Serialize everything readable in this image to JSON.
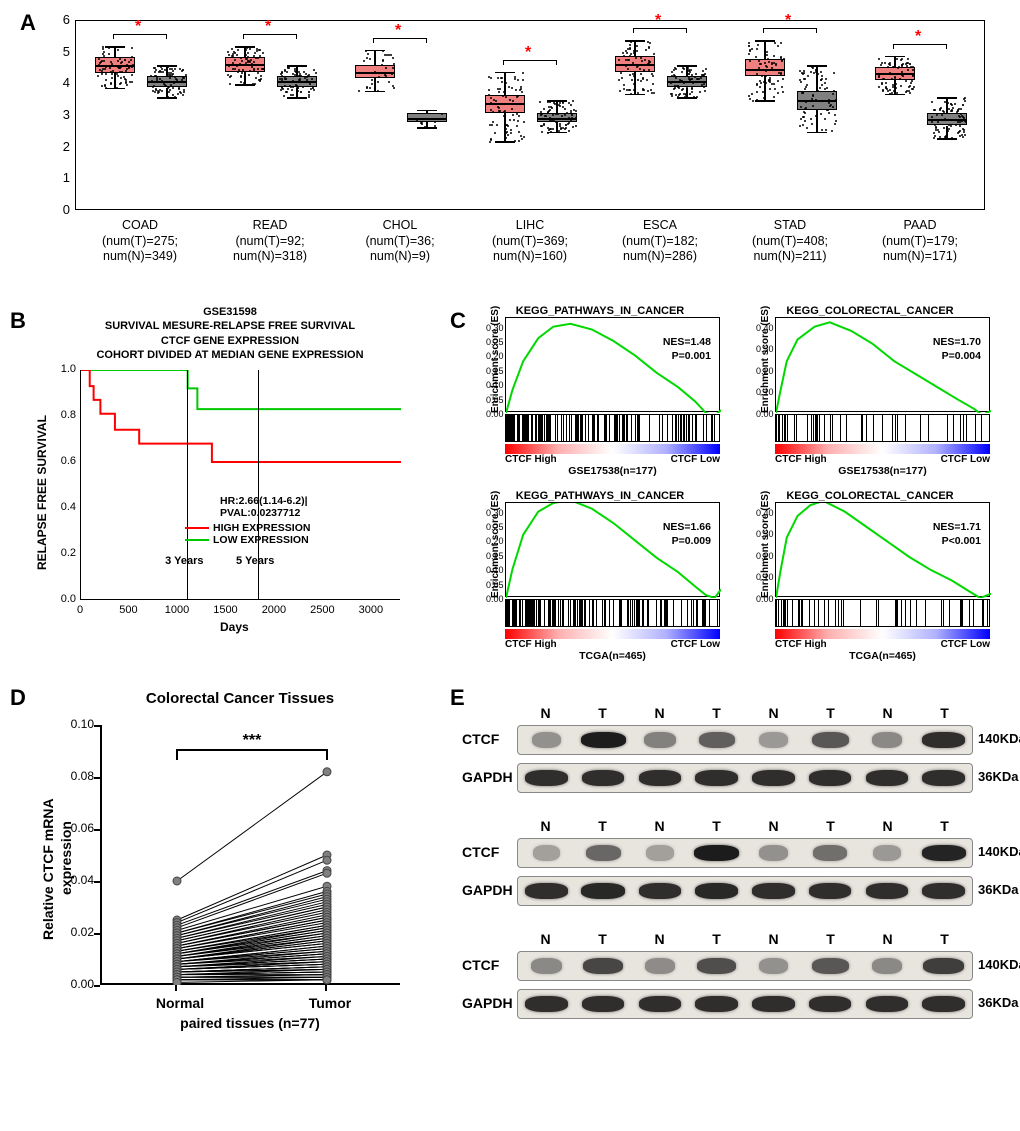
{
  "panelA": {
    "label": "A",
    "y_ticks": [
      0,
      1,
      2,
      3,
      4,
      5,
      6
    ],
    "ymax": 6,
    "colors": {
      "tumor": "#f08080",
      "normal": "#808080"
    },
    "sig_marker": "*",
    "groups": [
      {
        "name": "COAD",
        "T_n": 275,
        "N_n": 349,
        "T": {
          "q1": 4.35,
          "med": 4.6,
          "q3": 4.85,
          "lo": 3.9,
          "hi": 5.2
        },
        "N": {
          "q1": 3.9,
          "med": 4.1,
          "q3": 4.25,
          "lo": 3.6,
          "hi": 4.6
        }
      },
      {
        "name": "READ",
        "T_n": 92,
        "N_n": 318,
        "T": {
          "q1": 4.4,
          "med": 4.65,
          "q3": 4.85,
          "lo": 4.0,
          "hi": 5.2
        },
        "N": {
          "q1": 3.9,
          "med": 4.1,
          "q3": 4.25,
          "lo": 3.6,
          "hi": 4.6
        }
      },
      {
        "name": "CHOL",
        "T_n": 36,
        "N_n": 9,
        "T": {
          "q1": 4.2,
          "med": 4.4,
          "q3": 4.6,
          "lo": 3.8,
          "hi": 5.1
        },
        "N": {
          "q1": 2.8,
          "med": 2.95,
          "q3": 3.1,
          "lo": 2.65,
          "hi": 3.2
        }
      },
      {
        "name": "LIHC",
        "T_n": 369,
        "N_n": 160,
        "T": {
          "q1": 3.1,
          "med": 3.4,
          "q3": 3.65,
          "lo": 2.2,
          "hi": 4.4
        },
        "N": {
          "q1": 2.8,
          "med": 2.95,
          "q3": 3.1,
          "lo": 2.5,
          "hi": 3.5
        }
      },
      {
        "name": "ESCA",
        "T_n": 182,
        "N_n": 286,
        "T": {
          "q1": 4.4,
          "med": 4.65,
          "q3": 4.9,
          "lo": 3.7,
          "hi": 5.4
        },
        "N": {
          "q1": 3.9,
          "med": 4.1,
          "q3": 4.25,
          "lo": 3.6,
          "hi": 4.6
        }
      },
      {
        "name": "STAD",
        "T_n": 408,
        "N_n": 211,
        "T": {
          "q1": 4.25,
          "med": 4.5,
          "q3": 4.8,
          "lo": 3.5,
          "hi": 5.4
        },
        "N": {
          "q1": 3.2,
          "med": 3.5,
          "q3": 3.8,
          "lo": 2.5,
          "hi": 4.6
        }
      },
      {
        "name": "PAAD",
        "T_n": 179,
        "N_n": 171,
        "T": {
          "q1": 4.15,
          "med": 4.35,
          "q3": 4.55,
          "lo": 3.7,
          "hi": 4.9
        },
        "N": {
          "q1": 2.7,
          "med": 2.9,
          "q3": 3.1,
          "lo": 2.3,
          "hi": 3.6
        }
      }
    ]
  },
  "panelB": {
    "label": "B",
    "dataset": "GSE31598",
    "title_lines": [
      "SURVIVAL MESURE-RELAPSE FREE SURVIVAL",
      "CTCF GENE EXPRESSION",
      "COHORT DIVIDED AT MEDIAN GENE EXPRESSION"
    ],
    "y_label": "RELAPSE FREE SURVIVAL",
    "x_label": "Days",
    "y_ticks": [
      0.0,
      0.2,
      0.4,
      0.6,
      0.8,
      1.0
    ],
    "x_ticks": [
      0,
      500,
      1000,
      1500,
      2000,
      2500,
      3000
    ],
    "xmax": 3300,
    "vlines": [
      {
        "x": 1095,
        "label": "3 Years"
      },
      {
        "x": 1825,
        "label": "5 Years"
      }
    ],
    "hr_text": "HR:2.66(1.14-6.2)|",
    "pval_text": "PVAL:0.0237712",
    "legend": [
      {
        "label": "HIGH EXPRESSION",
        "color": "#ff0000"
      },
      {
        "label": "LOW EXPRESSION",
        "color": "#00c800"
      }
    ],
    "high_curve": [
      [
        0,
        1.0
      ],
      [
        90,
        1.0
      ],
      [
        90,
        0.93
      ],
      [
        130,
        0.93
      ],
      [
        130,
        0.87
      ],
      [
        200,
        0.87
      ],
      [
        200,
        0.81
      ],
      [
        350,
        0.81
      ],
      [
        350,
        0.74
      ],
      [
        600,
        0.74
      ],
      [
        600,
        0.68
      ],
      [
        1050,
        0.68
      ],
      [
        1050,
        0.68
      ],
      [
        1350,
        0.68
      ],
      [
        1350,
        0.6
      ],
      [
        3300,
        0.6
      ]
    ],
    "low_curve": [
      [
        0,
        1.0
      ],
      [
        1100,
        1.0
      ],
      [
        1100,
        0.92
      ],
      [
        1200,
        0.92
      ],
      [
        1200,
        0.83
      ],
      [
        3300,
        0.83
      ]
    ]
  },
  "panelC": {
    "label": "C",
    "ylabel": "Enrichment score (ES)",
    "xlabels": [
      "CTCF High",
      "CTCF Low"
    ],
    "gradient_colors": [
      "#ff0000",
      "#ffb0b0",
      "#ffffff",
      "#b0b0ff",
      "#0000ff"
    ],
    "plots": [
      {
        "title": "KEGG_PATHWAYS_IN_CANCER",
        "nes": "NES=1.48",
        "p": "P=0.001",
        "cohort": "GSE17538(n=177)",
        "y_ticks": [
          0.0,
          0.05,
          0.1,
          0.15,
          0.2,
          0.25,
          0.3
        ],
        "ymax": 0.3,
        "curve": [
          [
            0,
            0
          ],
          [
            0.03,
            0.08
          ],
          [
            0.08,
            0.18
          ],
          [
            0.15,
            0.26
          ],
          [
            0.22,
            0.3
          ],
          [
            0.3,
            0.31
          ],
          [
            0.4,
            0.29
          ],
          [
            0.5,
            0.25
          ],
          [
            0.6,
            0.2
          ],
          [
            0.7,
            0.14
          ],
          [
            0.8,
            0.09
          ],
          [
            0.88,
            0.04
          ],
          [
            0.93,
            0.0
          ],
          [
            0.97,
            -0.01
          ],
          [
            1.0,
            0.01
          ]
        ]
      },
      {
        "title": "KEGG_COLORECTAL_CANCER",
        "nes": "NES=1.70",
        "p": "P=0.004",
        "cohort": "GSE17538(n=177)",
        "y_ticks": [
          0.0,
          0.1,
          0.2,
          0.3,
          0.4
        ],
        "ymax": 0.4,
        "curve": [
          [
            0,
            0
          ],
          [
            0.02,
            0.1
          ],
          [
            0.05,
            0.24
          ],
          [
            0.1,
            0.34
          ],
          [
            0.18,
            0.4
          ],
          [
            0.25,
            0.42
          ],
          [
            0.35,
            0.38
          ],
          [
            0.45,
            0.32
          ],
          [
            0.55,
            0.24
          ],
          [
            0.65,
            0.18
          ],
          [
            0.75,
            0.12
          ],
          [
            0.85,
            0.06
          ],
          [
            0.92,
            0.02
          ],
          [
            0.96,
            -0.01
          ],
          [
            1.0,
            0.01
          ]
        ]
      },
      {
        "title": "KEGG_PATHWAYS_IN_CANCER",
        "nes": "NES=1.66",
        "p": "P=0.009",
        "cohort": "TCGA(n=465)",
        "y_ticks": [
          0.0,
          0.05,
          0.1,
          0.15,
          0.2,
          0.25,
          0.3
        ],
        "ymax": 0.3,
        "curve": [
          [
            0,
            0
          ],
          [
            0.03,
            0.1
          ],
          [
            0.08,
            0.22
          ],
          [
            0.15,
            0.3
          ],
          [
            0.22,
            0.33
          ],
          [
            0.3,
            0.34
          ],
          [
            0.4,
            0.31
          ],
          [
            0.5,
            0.26
          ],
          [
            0.6,
            0.2
          ],
          [
            0.7,
            0.14
          ],
          [
            0.8,
            0.09
          ],
          [
            0.88,
            0.04
          ],
          [
            0.93,
            0.01
          ],
          [
            0.97,
            0.0
          ],
          [
            1.0,
            0.03
          ]
        ]
      },
      {
        "title": "KEGG_COLORECTAL_CANCER",
        "nes": "NES=1.71",
        "p": "P<0.001",
        "cohort": "TCGA(n=465)",
        "y_ticks": [
          0.0,
          0.1,
          0.2,
          0.3,
          0.4
        ],
        "ymax": 0.4,
        "curve": [
          [
            0,
            0
          ],
          [
            0.02,
            0.12
          ],
          [
            0.05,
            0.28
          ],
          [
            0.1,
            0.38
          ],
          [
            0.16,
            0.43
          ],
          [
            0.22,
            0.45
          ],
          [
            0.32,
            0.4
          ],
          [
            0.42,
            0.33
          ],
          [
            0.52,
            0.26
          ],
          [
            0.62,
            0.19
          ],
          [
            0.72,
            0.13
          ],
          [
            0.82,
            0.08
          ],
          [
            0.9,
            0.03
          ],
          [
            0.95,
            0.0
          ],
          [
            1.0,
            0.02
          ]
        ]
      }
    ]
  },
  "panelD": {
    "label": "D",
    "title": "Colorectal Cancer Tissues",
    "y_label_l1": "Relative CTCF mRNA",
    "y_label_l2": "expression",
    "x_label": "paired tissues (n=77)",
    "x_cats": [
      "Normal",
      "Tumor"
    ],
    "y_ticks": [
      0.0,
      0.02,
      0.04,
      0.06,
      0.08,
      0.1
    ],
    "ymax": 0.1,
    "sig": "***",
    "pairs": [
      [
        0.04,
        0.082
      ],
      [
        0.025,
        0.05
      ],
      [
        0.024,
        0.048
      ],
      [
        0.023,
        0.044
      ],
      [
        0.022,
        0.043
      ],
      [
        0.021,
        0.038
      ],
      [
        0.02,
        0.036
      ],
      [
        0.02,
        0.035
      ],
      [
        0.019,
        0.034
      ],
      [
        0.019,
        0.033
      ],
      [
        0.018,
        0.032
      ],
      [
        0.018,
        0.031
      ],
      [
        0.017,
        0.03
      ],
      [
        0.017,
        0.03
      ],
      [
        0.016,
        0.029
      ],
      [
        0.016,
        0.028
      ],
      [
        0.015,
        0.027
      ],
      [
        0.015,
        0.026
      ],
      [
        0.015,
        0.026
      ],
      [
        0.014,
        0.025
      ],
      [
        0.014,
        0.025
      ],
      [
        0.014,
        0.024
      ],
      [
        0.013,
        0.023
      ],
      [
        0.013,
        0.023
      ],
      [
        0.013,
        0.022
      ],
      [
        0.012,
        0.022
      ],
      [
        0.012,
        0.021
      ],
      [
        0.012,
        0.021
      ],
      [
        0.012,
        0.02
      ],
      [
        0.011,
        0.02
      ],
      [
        0.011,
        0.019
      ],
      [
        0.011,
        0.019
      ],
      [
        0.011,
        0.018
      ],
      [
        0.01,
        0.018
      ],
      [
        0.01,
        0.017
      ],
      [
        0.01,
        0.017
      ],
      [
        0.01,
        0.016
      ],
      [
        0.01,
        0.016
      ],
      [
        0.009,
        0.015
      ],
      [
        0.009,
        0.015
      ],
      [
        0.009,
        0.014
      ],
      [
        0.009,
        0.014
      ],
      [
        0.009,
        0.013
      ],
      [
        0.008,
        0.013
      ],
      [
        0.008,
        0.012
      ],
      [
        0.008,
        0.012
      ],
      [
        0.008,
        0.012
      ],
      [
        0.008,
        0.011
      ],
      [
        0.007,
        0.011
      ],
      [
        0.007,
        0.01
      ],
      [
        0.007,
        0.01
      ],
      [
        0.007,
        0.01
      ],
      [
        0.007,
        0.009
      ],
      [
        0.006,
        0.009
      ],
      [
        0.006,
        0.009
      ],
      [
        0.006,
        0.008
      ],
      [
        0.006,
        0.008
      ],
      [
        0.006,
        0.008
      ],
      [
        0.005,
        0.007
      ],
      [
        0.005,
        0.007
      ],
      [
        0.005,
        0.007
      ],
      [
        0.005,
        0.006
      ],
      [
        0.005,
        0.006
      ],
      [
        0.004,
        0.006
      ],
      [
        0.004,
        0.005
      ],
      [
        0.004,
        0.005
      ],
      [
        0.004,
        0.005
      ],
      [
        0.004,
        0.004
      ],
      [
        0.003,
        0.004
      ],
      [
        0.003,
        0.004
      ],
      [
        0.003,
        0.003
      ],
      [
        0.003,
        0.003
      ],
      [
        0.002,
        0.003
      ],
      [
        0.002,
        0.002
      ],
      [
        0.002,
        0.002
      ],
      [
        0.002,
        0.002
      ],
      [
        0.001,
        0.002
      ]
    ]
  },
  "panelE": {
    "label": "E",
    "lane_header": [
      "N",
      "T",
      "N",
      "T",
      "N",
      "T",
      "N",
      "T"
    ],
    "proteins": {
      "ctcf": "CTCF",
      "gapdh": "GAPDH"
    },
    "kda": {
      "ctcf": "140KDa",
      "gapdh": "36KDa"
    },
    "background": "#e8e4de",
    "rows": [
      {
        "ctcf_intensity": [
          0.25,
          0.95,
          0.35,
          0.55,
          0.2,
          0.6,
          0.3,
          0.85
        ],
        "gapdh_intensity": [
          0.85,
          0.85,
          0.85,
          0.85,
          0.85,
          0.85,
          0.85,
          0.85
        ]
      },
      {
        "ctcf_intensity": [
          0.15,
          0.5,
          0.15,
          0.95,
          0.25,
          0.45,
          0.2,
          0.9
        ],
        "gapdh_intensity": [
          0.85,
          0.88,
          0.85,
          0.88,
          0.85,
          0.85,
          0.85,
          0.85
        ]
      },
      {
        "ctcf_intensity": [
          0.3,
          0.7,
          0.28,
          0.65,
          0.25,
          0.6,
          0.3,
          0.75
        ],
        "gapdh_intensity": [
          0.85,
          0.85,
          0.85,
          0.85,
          0.85,
          0.85,
          0.85,
          0.85
        ]
      }
    ]
  }
}
